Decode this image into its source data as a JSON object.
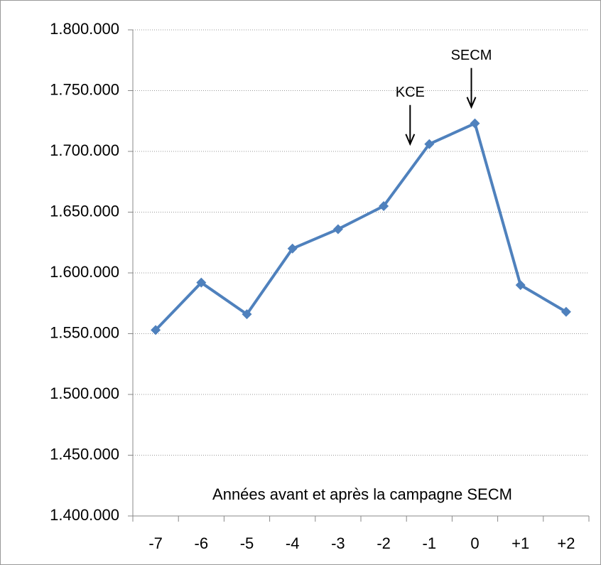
{
  "chart_data": {
    "type": "line",
    "categories": [
      "-7",
      "-6",
      "-5",
      "-4",
      "-3",
      "-2",
      "-1",
      "0",
      "+1",
      "+2"
    ],
    "series": [
      {
        "name": "",
        "color": "#4f81bd",
        "values": [
          1553000,
          1592000,
          1566000,
          1620000,
          1636000,
          1655000,
          1706000,
          1723000,
          1590000,
          1568000
        ]
      }
    ],
    "ylim": [
      1400000,
      1800000
    ],
    "yticks": [
      {
        "value": 1400000,
        "label": "1.400.000"
      },
      {
        "value": 1450000,
        "label": "1.450.000"
      },
      {
        "value": 1500000,
        "label": "1.500.000"
      },
      {
        "value": 1550000,
        "label": "1.550.000"
      },
      {
        "value": 1600000,
        "label": "1.600.000"
      },
      {
        "value": 1650000,
        "label": "1.650.000"
      },
      {
        "value": 1700000,
        "label": "1.700.000"
      },
      {
        "value": 1750000,
        "label": "1.750.000"
      },
      {
        "value": 1800000,
        "label": "1.800.000"
      }
    ],
    "grid": true,
    "x_label": "Années avant et après la campagne SECM",
    "annotations": [
      {
        "text": "KCE",
        "x": "-1"
      },
      {
        "text": "SECM",
        "x": "0"
      }
    ]
  }
}
